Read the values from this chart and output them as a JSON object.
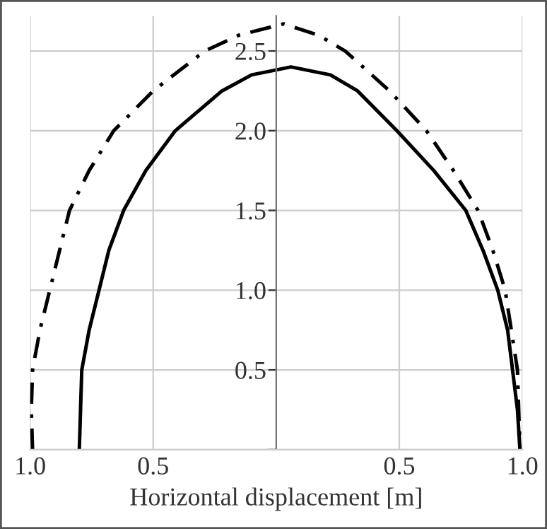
{
  "chart_data": {
    "type": "line",
    "xlabel": "Horizontal displacement [m]",
    "xlim": [
      -1.0,
      1.0
    ],
    "xticks": [
      {
        "value": -1.0,
        "label": "1.0"
      },
      {
        "value": -0.5,
        "label": "0.5"
      },
      {
        "value": 0,
        "label": null
      },
      {
        "value": 0.5,
        "label": "0.5"
      },
      {
        "value": 1.0,
        "label": "1.0"
      }
    ],
    "ylim": [
      0,
      2.72
    ],
    "yticks": [
      {
        "value": 0,
        "label": null
      },
      0.5,
      {
        "value": 1.0,
        "label": "1.0"
      },
      1.5,
      {
        "value": 2.0,
        "label": "2.0"
      },
      2.5
    ],
    "grid": true,
    "series": [
      {
        "color": "#000000",
        "line_style": "solid",
        "x": [
          -0.8,
          -0.795,
          -0.79,
          -0.76,
          -0.72,
          -0.68,
          -0.62,
          -0.53,
          -0.41,
          -0.22,
          -0.1,
          0.06,
          0.22,
          0.33,
          0.49,
          0.64,
          0.77,
          0.84,
          0.9,
          0.94,
          0.96,
          0.98,
          0.99
        ],
        "values": [
          0,
          0.25,
          0.5,
          0.75,
          1.0,
          1.25,
          1.5,
          1.75,
          2.0,
          2.25,
          2.35,
          2.4,
          2.35,
          2.25,
          2.0,
          1.75,
          1.5,
          1.25,
          1.0,
          0.75,
          0.5,
          0.25,
          0
        ]
      },
      {
        "color": "#000000",
        "line_style": "dashdot",
        "x": [
          -0.99,
          -0.995,
          -0.99,
          -0.96,
          -0.92,
          -0.88,
          -0.84,
          -0.76,
          -0.66,
          -0.5,
          -0.29,
          -0.15,
          0.03,
          0.17,
          0.28,
          0.46,
          0.61,
          0.72,
          0.82,
          0.88,
          0.93,
          0.955,
          0.98,
          0.985,
          0.99
        ],
        "values": [
          0,
          0.25,
          0.5,
          0.75,
          1.0,
          1.25,
          1.5,
          1.75,
          2.0,
          2.25,
          2.5,
          2.6,
          2.67,
          2.6,
          2.5,
          2.25,
          2.0,
          1.75,
          1.5,
          1.25,
          1.0,
          0.75,
          0.5,
          0.25,
          0
        ]
      }
    ]
  }
}
